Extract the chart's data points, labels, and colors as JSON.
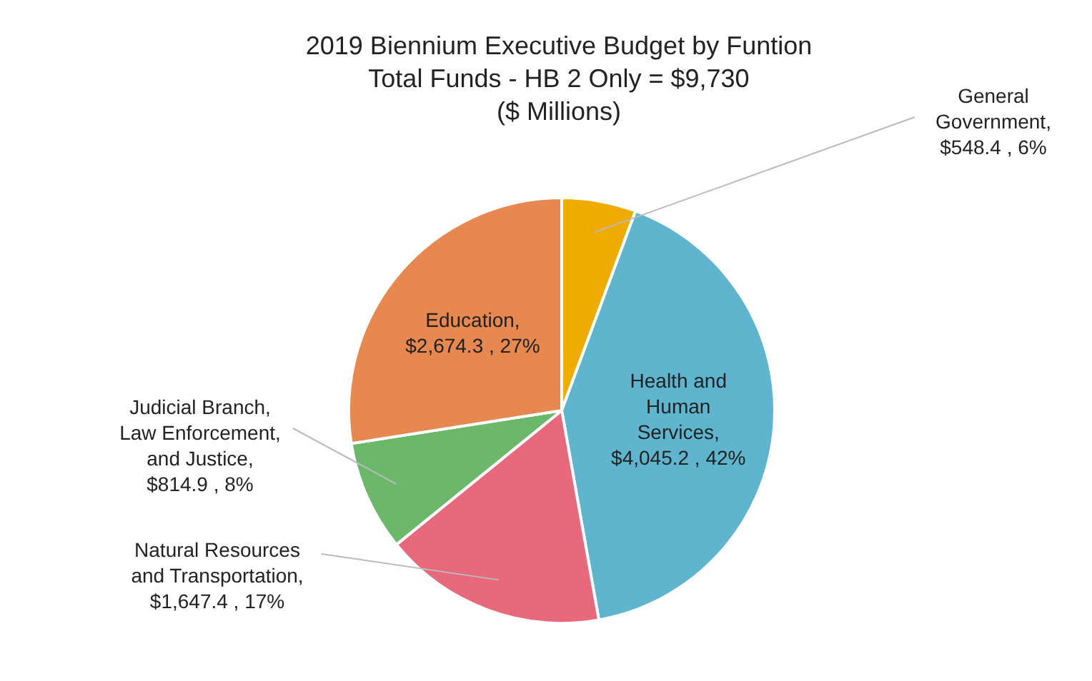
{
  "chart_data": {
    "type": "pie",
    "title": "2019 Biennium Executive Budget by Funtion",
    "subtitle": "Total Funds - HB 2 Only = $9,730\n($ Millions)",
    "categories": [
      "General Government",
      "Health and Human Services",
      "Natural Resources and Transportation",
      "Judicial Branch, Law Enforcement, and Justice",
      "Education"
    ],
    "values": [
      548.4,
      4045.2,
      1647.4,
      814.9,
      2674.3
    ],
    "value_labels": [
      ",\n$548.4 , 6%",
      ",\n$4,045.2 , 42%",
      ",\n$1,647.4 , 17%",
      ",\n$814.9 , 8%",
      ",\n$2,674.3 , 27%"
    ],
    "colors": [
      "#f0ab00",
      "#5fb4ce",
      "#e8687c",
      "#6bb86b",
      "#e6884f"
    ],
    "legend": false
  }
}
